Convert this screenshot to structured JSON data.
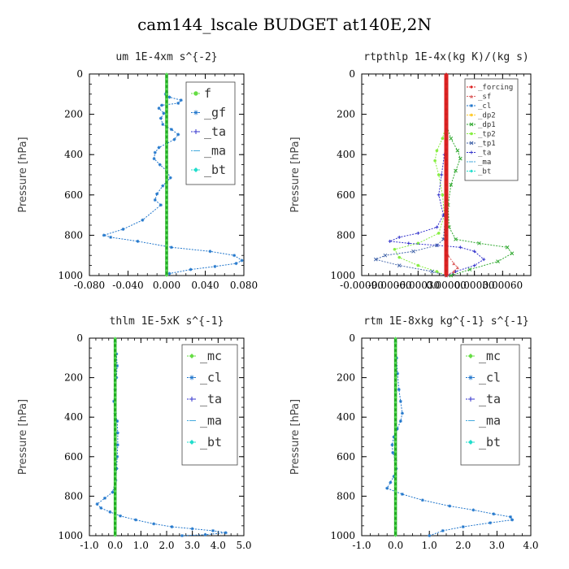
{
  "page_title": "cam144_lscale  BUDGET at140E,2N",
  "colors": {
    "mc": "#66dd44",
    "cl": "#2277cc",
    "ta": "#3333cc",
    "ma": "#44aadd",
    "bt": "#22ddcc",
    "forcing": "#dd2222",
    "sf": "#dd6666",
    "dp2": "#ffcc33",
    "dp1": "#33aa33",
    "tp2": "#88ee44",
    "tp1": "#4466aa",
    "zero_line": "#22aa22"
  },
  "chart_data": [
    {
      "type": "line",
      "title": "um   1E-4xm  s^{-2}",
      "ylabel": "Pressure [hPa]",
      "xlim": [
        -0.08,
        0.08
      ],
      "ylim": [
        1000,
        0
      ],
      "xticks": [
        "-0.080",
        "-0.040",
        "0.000",
        "0.040",
        "0.080"
      ],
      "xtick_values": [
        -0.08,
        -0.04,
        0.0,
        0.04,
        0.08
      ],
      "yticks": [
        "0",
        "200",
        "400",
        "600",
        "800",
        "1000"
      ],
      "ytick_values": [
        0,
        200,
        400,
        600,
        800,
        1000
      ],
      "legend": {
        "position": "top-right",
        "entries": [
          "f",
          "_gf",
          "_ta",
          "_ma",
          "_bt"
        ]
      },
      "series": [
        {
          "key": "cl",
          "x": [
            0.0,
            -0.001,
            0.0,
            0.003,
            0.015,
            0.012,
            -0.005,
            -0.008,
            -0.003,
            -0.006,
            -0.004,
            0.005,
            0.012,
            0.008,
            0.0,
            -0.008,
            -0.012,
            -0.013,
            -0.007,
            0.0,
            0.004,
            -0.004,
            -0.01,
            -0.012,
            -0.006,
            -0.025,
            -0.045,
            -0.065,
            -0.058,
            -0.03,
            0.005,
            0.045,
            0.07,
            0.078,
            0.072,
            0.05,
            0.025,
            0.003
          ],
          "y": [
            90,
            100,
            105,
            115,
            130,
            145,
            155,
            170,
            195,
            220,
            250,
            275,
            300,
            325,
            345,
            365,
            390,
            420,
            450,
            480,
            515,
            555,
            595,
            625,
            650,
            725,
            770,
            800,
            810,
            830,
            860,
            880,
            900,
            925,
            940,
            955,
            970,
            990
          ]
        }
      ]
    },
    {
      "type": "line",
      "title": "rtpthlp   1E-4x(kg K)/(kg s)",
      "ylabel": "Pressure [hPa]",
      "xlim": [
        -0.0009,
        0.0009
      ],
      "ylim": [
        1000,
        0
      ],
      "xticks": [
        "-0.00090",
        "-0.00060",
        "-0.00030",
        "0.00000",
        "0.00030",
        "0.00060"
      ],
      "xtick_values": [
        -0.0009,
        -0.0006,
        -0.0003,
        0.0,
        0.0003,
        0.0006
      ],
      "yticks": [
        "0",
        "200",
        "400",
        "600",
        "800",
        "1000"
      ],
      "ytick_values": [
        0,
        200,
        400,
        600,
        800,
        1000
      ],
      "legend": {
        "position": "top-right",
        "entries": [
          "_forcing",
          "_sf",
          "_cl",
          "_dp2",
          "_dp1",
          "_tp2",
          "_tp1",
          "_ta",
          "_ma",
          "_bt"
        ]
      },
      "series": [
        {
          "key": "dp1",
          "x": [
            0.0,
            5e-05,
            0.00012,
            0.00015,
            0.0001,
            5e-05,
            2e-05,
            3e-05,
            0.0001,
            0.00035,
            0.00065,
            0.0007,
            0.00055,
            0.00025,
            5e-05
          ],
          "y": [
            250,
            320,
            380,
            420,
            480,
            550,
            650,
            760,
            820,
            840,
            860,
            890,
            930,
            970,
            1000
          ]
        },
        {
          "key": "tp2",
          "x": [
            0.0,
            -4e-05,
            -0.0001,
            -0.00012,
            -8e-05,
            -4e-05,
            -2e-05,
            -8e-05,
            -0.0003,
            -0.00055,
            -0.0005,
            -0.0003,
            -0.0001,
            0.0
          ],
          "y": [
            250,
            320,
            380,
            430,
            500,
            600,
            700,
            790,
            840,
            870,
            910,
            950,
            980,
            1000
          ]
        },
        {
          "key": "ta",
          "x": [
            0.0,
            -2e-05,
            -5e-05,
            -8e-05,
            -3e-05,
            -0.0001,
            -0.0003,
            -0.0005,
            -0.0006,
            -0.0004,
            -0.0001,
            0.00015,
            0.0003,
            0.0004,
            0.0003,
            0.0001,
            0.0
          ],
          "y": [
            300,
            400,
            500,
            600,
            700,
            760,
            790,
            810,
            830,
            840,
            850,
            860,
            880,
            920,
            950,
            980,
            1000
          ]
        },
        {
          "key": "tp1",
          "x": [
            0.0,
            -1e-05,
            -3e-05,
            -0.0001,
            -0.00035,
            -0.00065,
            -0.00075,
            -0.0005,
            -0.00015,
            0.0
          ],
          "y": [
            500,
            700,
            820,
            850,
            880,
            900,
            920,
            950,
            980,
            1000
          ]
        },
        {
          "key": "sf",
          "x": [
            0.0,
            2e-05,
            8e-05,
            0.00012,
            8e-05,
            0.0
          ],
          "y": [
            850,
            900,
            940,
            960,
            980,
            1000
          ]
        }
      ]
    },
    {
      "type": "line",
      "title": "thlm   1E-5xK  s^{-1}",
      "ylabel": "Pressure [hPa]",
      "xlim": [
        -1.0,
        5.0
      ],
      "ylim": [
        1000,
        0
      ],
      "xticks": [
        "-1.0",
        "0.0",
        "1.0",
        "2.0",
        "3.0",
        "4.0",
        "5.0"
      ],
      "xtick_values": [
        -1,
        0,
        1,
        2,
        3,
        4,
        5
      ],
      "yticks": [
        "0",
        "200",
        "400",
        "600",
        "800",
        "1000"
      ],
      "ytick_values": [
        0,
        200,
        400,
        600,
        800,
        1000
      ],
      "legend": {
        "position": "top-right",
        "entries": [
          "_mc",
          "_cl",
          "_ta",
          "_ma",
          "_bt"
        ]
      },
      "series": [
        {
          "key": "cl",
          "x": [
            0.0,
            0.05,
            0.08,
            0.05,
            0.0,
            -0.05,
            0.0,
            0.08,
            0.1,
            0.1,
            0.08,
            0.06,
            0.02,
            -0.1,
            -0.4,
            -0.7,
            -0.55,
            -0.2,
            0.2,
            0.8,
            1.5,
            2.2,
            3.0,
            3.8,
            4.3,
            3.5,
            2.6
          ],
          "y": [
            20,
            80,
            140,
            200,
            260,
            320,
            380,
            420,
            480,
            540,
            600,
            660,
            720,
            780,
            810,
            840,
            860,
            880,
            900,
            920,
            940,
            955,
            965,
            975,
            985,
            995,
            1000
          ]
        }
      ]
    },
    {
      "type": "line",
      "title": "rtm   1E-8xkg  kg^{-1}  s^{-1}",
      "ylabel": "Pressure [hPa]",
      "xlim": [
        -1.0,
        4.0
      ],
      "ylim": [
        1000,
        0
      ],
      "xticks": [
        "-1.0",
        "0.0",
        "1.0",
        "2.0",
        "3.0",
        "4.0"
      ],
      "xtick_values": [
        -1,
        0,
        1,
        2,
        3,
        4
      ],
      "yticks": [
        "0",
        "200",
        "400",
        "600",
        "800",
        "1000"
      ],
      "ytick_values": [
        0,
        200,
        400,
        600,
        800,
        1000
      ],
      "legend": {
        "position": "top-right",
        "entries": [
          "_mc",
          "_cl",
          "_ta",
          "_ma",
          "_bt"
        ]
      },
      "series": [
        {
          "key": "cl",
          "x": [
            0.0,
            0.03,
            0.06,
            0.1,
            0.15,
            0.2,
            0.15,
            0.05,
            -0.05,
            -0.1,
            -0.08,
            0.0,
            0.02,
            -0.05,
            -0.15,
            -0.25,
            0.2,
            0.8,
            1.6,
            2.3,
            2.9,
            3.4,
            3.45,
            2.8,
            2.0,
            1.4,
            1.0
          ],
          "y": [
            20,
            100,
            180,
            260,
            320,
            380,
            420,
            460,
            500,
            540,
            580,
            620,
            660,
            700,
            730,
            760,
            790,
            820,
            850,
            870,
            890,
            905,
            920,
            935,
            955,
            975,
            1000
          ]
        }
      ]
    }
  ]
}
